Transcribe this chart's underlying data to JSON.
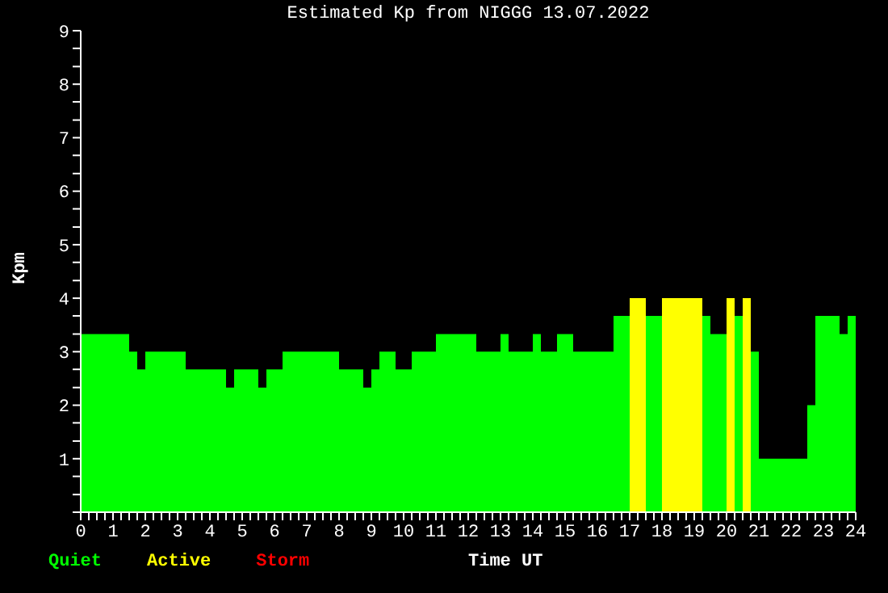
{
  "chart_data": {
    "type": "histogram",
    "title": "Estimated Kp from NIGGG 13.07.2022",
    "xlabel": "Time UT",
    "ylabel": "Kpm",
    "bins": [
      0,
      1.5,
      1.75,
      2,
      3.25,
      4.5,
      4.75,
      5.5,
      5.75,
      6.25,
      8,
      8.75,
      9,
      9.25,
      9.75,
      10.25,
      11,
      12.25,
      13,
      13.25,
      14,
      14.25,
      14.75,
      15.25,
      16.5,
      17,
      17.5,
      18,
      19.25,
      19.5,
      20,
      20.25,
      20.5,
      20.75,
      21,
      22.5,
      22.75,
      23.5,
      23.75,
      24
    ],
    "series": [
      {
        "name": "Quiet",
        "color": "#00ff00",
        "values": [
          3.33,
          3,
          2.67,
          3,
          2.67,
          2.33,
          2.67,
          2.33,
          2.67,
          3,
          2.67,
          2.33,
          2.67,
          3,
          2.67,
          3,
          3.33,
          3,
          3.33,
          3,
          3.33,
          3,
          3.33,
          3,
          3.67,
          null,
          3.67,
          null,
          3.67,
          3.33,
          null,
          3.67,
          null,
          3,
          1,
          2,
          3.67,
          3.33,
          3.67
        ]
      },
      {
        "name": "Active",
        "color": "#ffff00",
        "values": [
          null,
          null,
          null,
          null,
          null,
          null,
          null,
          null,
          null,
          null,
          null,
          null,
          null,
          null,
          null,
          null,
          null,
          null,
          null,
          null,
          null,
          null,
          null,
          null,
          null,
          4,
          null,
          4,
          null,
          null,
          4,
          null,
          4,
          null,
          null,
          null,
          null,
          null,
          null
        ]
      }
    ],
    "annotations": [
      "Storm"
    ],
    "xlim": [
      0,
      24
    ],
    "xticks": [
      0,
      {
        "value": 0.25,
        "label": null
      },
      {
        "value": 0.5,
        "label": null
      },
      {
        "value": 0.75,
        "label": null
      },
      1,
      {
        "value": 1.25,
        "label": null
      },
      {
        "value": 1.5,
        "label": null
      },
      {
        "value": 1.75,
        "label": null
      },
      2,
      {
        "value": 2.25,
        "label": null
      },
      {
        "value": 2.5,
        "label": null
      },
      {
        "value": 2.75,
        "label": null
      },
      3,
      {
        "value": 3.25,
        "label": null
      },
      {
        "value": 3.5,
        "label": null
      },
      {
        "value": 3.75,
        "label": null
      },
      4,
      {
        "value": 4.25,
        "label": null
      },
      {
        "value": 4.5,
        "label": null
      },
      {
        "value": 4.75,
        "label": null
      },
      5,
      {
        "value": 5.25,
        "label": null
      },
      {
        "value": 5.5,
        "label": null
      },
      {
        "value": 5.75,
        "label": null
      },
      6,
      {
        "value": 6.25,
        "label": null
      },
      {
        "value": 6.5,
        "label": null
      },
      {
        "value": 6.75,
        "label": null
      },
      7,
      {
        "value": 7.25,
        "label": null
      },
      {
        "value": 7.5,
        "label": null
      },
      {
        "value": 7.75,
        "label": null
      },
      8,
      {
        "value": 8.25,
        "label": null
      },
      {
        "value": 8.5,
        "label": null
      },
      {
        "value": 8.75,
        "label": null
      },
      9,
      {
        "value": 9.25,
        "label": null
      },
      {
        "value": 9.5,
        "label": null
      },
      {
        "value": 9.75,
        "label": null
      },
      10,
      {
        "value": 10.25,
        "label": null
      },
      {
        "value": 10.5,
        "label": null
      },
      {
        "value": 10.75,
        "label": null
      },
      11,
      {
        "value": 11.25,
        "label": null
      },
      {
        "value": 11.5,
        "label": null
      },
      {
        "value": 11.75,
        "label": null
      },
      12,
      {
        "value": 12.25,
        "label": null
      },
      {
        "value": 12.5,
        "label": null
      },
      {
        "value": 12.75,
        "label": null
      },
      13,
      {
        "value": 13.25,
        "label": null
      },
      {
        "value": 13.5,
        "label": null
      },
      {
        "value": 13.75,
        "label": null
      },
      14,
      {
        "value": 14.25,
        "label": null
      },
      {
        "value": 14.5,
        "label": null
      },
      {
        "value": 14.75,
        "label": null
      },
      15,
      {
        "value": 15.25,
        "label": null
      },
      {
        "value": 15.5,
        "label": null
      },
      {
        "value": 15.75,
        "label": null
      },
      16,
      {
        "value": 16.25,
        "label": null
      },
      {
        "value": 16.5,
        "label": null
      },
      {
        "value": 16.75,
        "label": null
      },
      17,
      {
        "value": 17.25,
        "label": null
      },
      {
        "value": 17.5,
        "label": null
      },
      {
        "value": 17.75,
        "label": null
      },
      18,
      {
        "value": 18.25,
        "label": null
      },
      {
        "value": 18.5,
        "label": null
      },
      {
        "value": 18.75,
        "label": null
      },
      19,
      {
        "value": 19.25,
        "label": null
      },
      {
        "value": 19.5,
        "label": null
      },
      {
        "value": 19.75,
        "label": null
      },
      20,
      {
        "value": 20.25,
        "label": null
      },
      {
        "value": 20.5,
        "label": null
      },
      {
        "value": 20.75,
        "label": null
      },
      21,
      {
        "value": 21.25,
        "label": null
      },
      {
        "value": 21.5,
        "label": null
      },
      {
        "value": 21.75,
        "label": null
      },
      22,
      {
        "value": 22.25,
        "label": null
      },
      {
        "value": 22.5,
        "label": null
      },
      {
        "value": 22.75,
        "label": null
      },
      23,
      {
        "value": 23.25,
        "label": null
      },
      {
        "value": 23.5,
        "label": null
      },
      {
        "value": 23.75,
        "label": null
      },
      24
    ],
    "ylim": [
      0,
      9
    ],
    "yticks": [
      {
        "value": 0,
        "label": null
      },
      {
        "value": 0.33,
        "label": null
      },
      {
        "value": 0.67,
        "label": null
      },
      1,
      {
        "value": 1.33,
        "label": null
      },
      {
        "value": 1.67,
        "label": null
      },
      2,
      {
        "value": 2.33,
        "label": null
      },
      {
        "value": 2.67,
        "label": null
      },
      3,
      {
        "value": 3.33,
        "label": null
      },
      {
        "value": 3.67,
        "label": null
      },
      4,
      {
        "value": 4.33,
        "label": null
      },
      {
        "value": 4.67,
        "label": null
      },
      5,
      {
        "value": 5.33,
        "label": null
      },
      {
        "value": 5.67,
        "label": null
      },
      6,
      {
        "value": 6.33,
        "label": null
      },
      {
        "value": 6.67,
        "label": null
      },
      7,
      {
        "value": 7.33,
        "label": null
      },
      {
        "value": 7.67,
        "label": null
      },
      8,
      {
        "value": 8.33,
        "label": null
      },
      {
        "value": 8.67,
        "label": null
      },
      9
    ],
    "legend": "bottom left"
  }
}
